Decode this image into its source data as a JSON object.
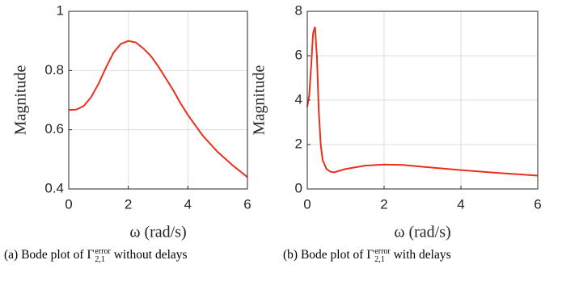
{
  "chart_data": [
    {
      "type": "line",
      "xlabel": "ω (rad/s)",
      "ylabel": "Magnitude",
      "x": [
        0,
        0.25,
        0.5,
        0.75,
        1,
        1.25,
        1.5,
        1.75,
        2,
        2.25,
        2.5,
        2.75,
        3,
        3.25,
        3.5,
        3.75,
        4,
        4.5,
        5,
        5.5,
        6
      ],
      "series": [
        {
          "color": "#e8301c",
          "values": [
            0.667,
            0.668,
            0.68,
            0.71,
            0.755,
            0.81,
            0.86,
            0.89,
            0.9,
            0.895,
            0.875,
            0.85,
            0.815,
            0.775,
            0.735,
            0.69,
            0.65,
            0.58,
            0.525,
            0.48,
            0.44
          ]
        }
      ],
      "xlim": [
        0,
        6
      ],
      "xticks": [
        0,
        2,
        4,
        6
      ],
      "ylim": [
        0.4,
        1
      ],
      "yticks": [
        0.4,
        0.6,
        0.8,
        1
      ],
      "grid": true
    },
    {
      "type": "line",
      "xlabel": "ω (rad/s)",
      "ylabel": "Magnitude",
      "x": [
        0,
        0.05,
        0.1,
        0.15,
        0.2,
        0.25,
        0.3,
        0.35,
        0.4,
        0.5,
        0.6,
        0.7,
        0.8,
        1,
        1.5,
        2,
        2.5,
        3,
        4,
        5,
        6
      ],
      "series": [
        {
          "color": "#e8301c",
          "values": [
            3.7,
            4.2,
            5.5,
            7.0,
            7.3,
            6.0,
            3.5,
            2.0,
            1.3,
            0.9,
            0.78,
            0.75,
            0.8,
            0.9,
            1.05,
            1.1,
            1.08,
            1.0,
            0.85,
            0.72,
            0.6
          ]
        }
      ],
      "xlim": [
        0,
        6
      ],
      "xticks": [
        0,
        2,
        4,
        6
      ],
      "ylim": [
        0,
        8
      ],
      "yticks": [
        0,
        2,
        4,
        6,
        8
      ],
      "grid": true
    }
  ],
  "captions": [
    {
      "label": "(a)",
      "prefix": "Bode plot of",
      "symbol": "Γ",
      "sup": "error",
      "sub": "2,1",
      "suffix": "without delays"
    },
    {
      "label": "(b)",
      "prefix": "Bode plot of",
      "symbol": "Γ",
      "sup": "error",
      "sub": "2,1",
      "suffix": "with delays"
    }
  ]
}
